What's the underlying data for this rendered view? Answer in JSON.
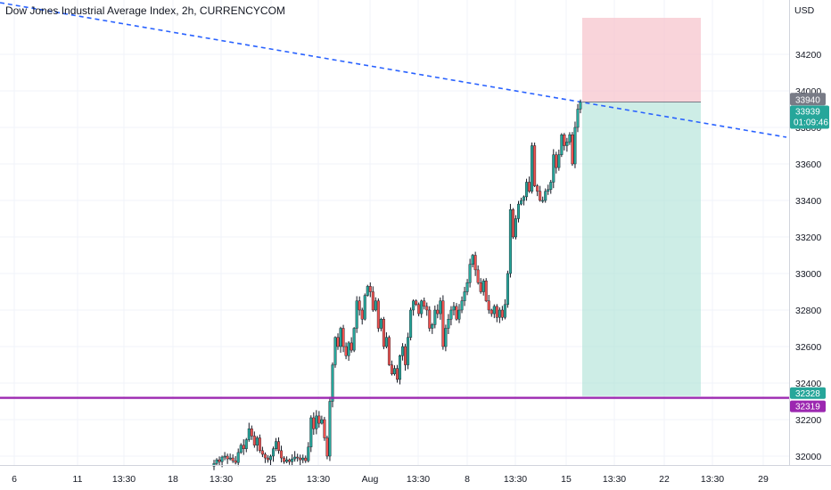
{
  "chart_data": {
    "type": "candlestick",
    "title": "Dow Jones Industrial Average Index, 2h, CURRENCYCOM",
    "currency": "USD",
    "y_ticks": [
      32000,
      32200,
      32400,
      32600,
      32800,
      33000,
      33200,
      33400,
      33600,
      33800,
      34000,
      34200
    ],
    "x_ticks": [
      "6",
      "11",
      "13:30",
      "18",
      "13:30",
      "25",
      "13:30",
      "Aug",
      "13:30",
      "8",
      "13:30",
      "15",
      "13:30",
      "22",
      "13:30",
      "29"
    ],
    "ylim": [
      31930,
      34470
    ],
    "current_price": {
      "value": "33939",
      "countdown": "01:09:46",
      "color": "#26a69a"
    },
    "trendline_tag": {
      "value": "33940",
      "color": "#787b86"
    },
    "support_line": {
      "value": "32319",
      "color": "#9c27b0"
    },
    "position": {
      "entry": "33939",
      "target": "32328",
      "stop": 34400,
      "target_color": "#26a69a",
      "stop_color": "#f23645"
    },
    "colors": {
      "up_candle": "#26a69a",
      "down_candle": "#ef5350",
      "wick": "#131722",
      "trendline": "#2962ff",
      "grid": "#f0f3fa"
    },
    "candles_close": [
      31960,
      31980,
      31970,
      31995,
      32000,
      31985,
      31990,
      31975,
      31965,
      32020,
      32060,
      32040,
      32090,
      32150,
      32110,
      32060,
      32100,
      32030,
      32010,
      31990,
      31980,
      32000,
      32040,
      32080,
      32030,
      31990,
      31970,
      31980,
      31970,
      31985,
      31995,
      31990,
      31980,
      31990,
      31975,
      32050,
      32210,
      32150,
      32220,
      32180,
      32200,
      32100,
      32000,
      32300,
      32500,
      32650,
      32600,
      32700,
      32600,
      32550,
      32620,
      32580,
      32700,
      32850,
      32800,
      32750,
      32880,
      32930,
      32900,
      32800,
      32850,
      32700,
      32750,
      32600,
      32650,
      32500,
      32450,
      32480,
      32420,
      32550,
      32600,
      32500,
      32650,
      32800,
      32850,
      32830,
      32780,
      32850,
      32820,
      32800,
      32700,
      32720,
      32800,
      32780,
      32850,
      32600,
      32700,
      32750,
      32800,
      32820,
      32750,
      32800,
      32850,
      32900,
      32950,
      33050,
      33100,
      33020,
      32950,
      32900,
      32960,
      32850,
      32800,
      32780,
      32820,
      32760,
      32800,
      32760,
      32830,
      33000,
      33350,
      33200,
      33300,
      33380,
      33400,
      33420,
      33500,
      33450,
      33700,
      33480,
      33450,
      33400,
      33400,
      33450,
      33460,
      33500,
      33650,
      33580,
      33650,
      33760,
      33700,
      33720,
      33760,
      33600,
      33800,
      33900,
      33939
    ]
  }
}
